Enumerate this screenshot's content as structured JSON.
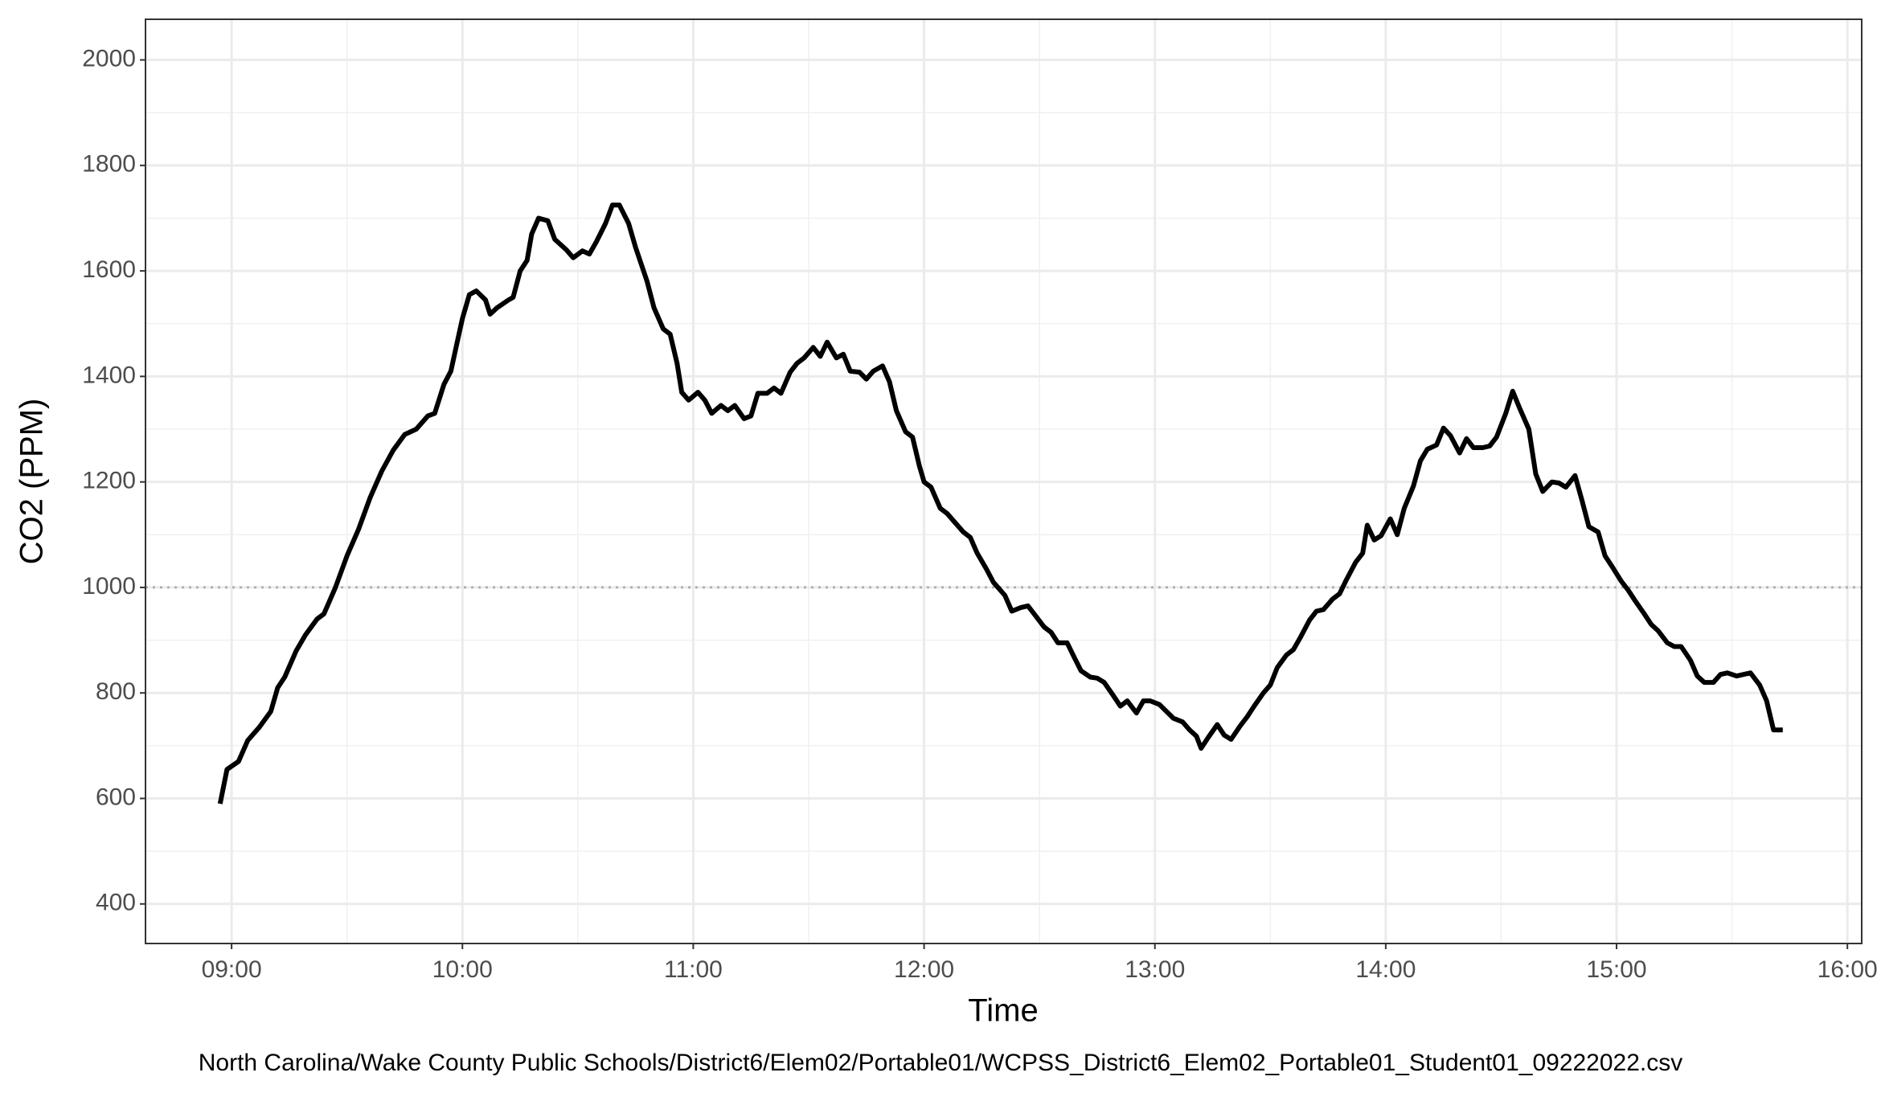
{
  "chart_data": {
    "type": "line",
    "x_label": "Time",
    "y_label": "CO2 (PPM)",
    "caption": "North Carolina/Wake County Public Schools/District6/Elem02/Portable01/WCPSS_District6_Elem02_Portable01_Student01_09222022.csv",
    "xlim": [
      8.627,
      16.062
    ],
    "ylim": [
      325,
      2077
    ],
    "xticks": [
      {
        "value": 9,
        "label": "09:00"
      },
      {
        "value": 10,
        "label": "10:00"
      },
      {
        "value": 11,
        "label": "11:00"
      },
      {
        "value": 12,
        "label": "12:00"
      },
      {
        "value": 13,
        "label": "13:00"
      },
      {
        "value": 14,
        "label": "14:00"
      },
      {
        "value": 15,
        "label": "15:00"
      },
      {
        "value": 16,
        "label": "16:00"
      }
    ],
    "yticks": [
      400,
      600,
      800,
      1000,
      1200,
      1400,
      1600,
      1800,
      2000
    ],
    "grid": true,
    "reference_line": {
      "value": 1000,
      "color": "#b0b0b0"
    },
    "x": [
      8.95,
      8.98,
      9.03,
      9.07,
      9.12,
      9.17,
      9.2,
      9.23,
      9.28,
      9.32,
      9.37,
      9.4,
      9.45,
      9.5,
      9.55,
      9.6,
      9.65,
      9.7,
      9.75,
      9.8,
      9.85,
      9.88,
      9.92,
      9.95,
      9.98,
      10.0,
      10.03,
      10.06,
      10.1,
      10.12,
      10.15,
      10.2,
      10.22,
      10.25,
      10.28,
      10.3,
      10.33,
      10.37,
      10.4,
      10.45,
      10.48,
      10.52,
      10.55,
      10.58,
      10.62,
      10.65,
      10.68,
      10.72,
      10.75,
      10.8,
      10.83,
      10.87,
      10.9,
      10.93,
      10.95,
      10.98,
      11.02,
      11.05,
      11.08,
      11.12,
      11.15,
      11.18,
      11.22,
      11.25,
      11.28,
      11.32,
      11.35,
      11.38,
      11.42,
      11.45,
      11.48,
      11.52,
      11.55,
      11.58,
      11.62,
      11.65,
      11.68,
      11.72,
      11.75,
      11.78,
      11.82,
      11.85,
      11.88,
      11.92,
      11.95,
      11.98,
      12.0,
      12.03,
      12.07,
      12.1,
      12.13,
      12.17,
      12.2,
      12.23,
      12.27,
      12.3,
      12.35,
      12.38,
      12.42,
      12.45,
      12.48,
      12.52,
      12.55,
      12.58,
      12.62,
      12.65,
      12.68,
      12.72,
      12.75,
      12.78,
      12.82,
      12.85,
      12.88,
      12.92,
      12.95,
      12.98,
      13.02,
      13.05,
      13.08,
      13.12,
      13.15,
      13.18,
      13.2,
      13.23,
      13.27,
      13.3,
      13.33,
      13.37,
      13.4,
      13.43,
      13.47,
      13.5,
      13.53,
      13.57,
      13.6,
      13.63,
      13.67,
      13.7,
      13.73,
      13.77,
      13.8,
      13.83,
      13.87,
      13.9,
      13.92,
      13.95,
      13.98,
      14.02,
      14.05,
      14.08,
      14.12,
      14.15,
      14.18,
      14.22,
      14.25,
      14.28,
      14.32,
      14.35,
      14.38,
      14.42,
      14.45,
      14.48,
      14.52,
      14.55,
      14.58,
      14.62,
      14.65,
      14.68,
      14.72,
      14.75,
      14.78,
      14.82,
      14.85,
      14.88,
      14.92,
      14.95,
      14.98,
      15.02,
      15.05,
      15.08,
      15.12,
      15.15,
      15.18,
      15.22,
      15.25,
      15.28,
      15.32,
      15.35,
      15.38,
      15.42,
      15.45,
      15.48,
      15.52,
      15.55,
      15.58,
      15.62,
      15.65,
      15.68,
      15.72
    ],
    "series": [
      {
        "color": "#000000",
        "values": [
          590,
          655,
          670,
          710,
          735,
          765,
          810,
          830,
          880,
          910,
          940,
          950,
          1000,
          1060,
          1110,
          1170,
          1220,
          1260,
          1290,
          1300,
          1325,
          1330,
          1385,
          1410,
          1470,
          1510,
          1555,
          1562,
          1545,
          1518,
          1530,
          1545,
          1550,
          1600,
          1620,
          1670,
          1700,
          1695,
          1660,
          1640,
          1625,
          1638,
          1632,
          1655,
          1690,
          1725,
          1725,
          1690,
          1645,
          1580,
          1530,
          1490,
          1480,
          1425,
          1370,
          1355,
          1370,
          1355,
          1330,
          1345,
          1335,
          1345,
          1320,
          1325,
          1368,
          1368,
          1378,
          1368,
          1408,
          1425,
          1435,
          1455,
          1438,
          1465,
          1435,
          1442,
          1410,
          1408,
          1395,
          1410,
          1420,
          1390,
          1335,
          1295,
          1285,
          1230,
          1200,
          1190,
          1150,
          1140,
          1125,
          1105,
          1095,
          1065,
          1035,
          1010,
          985,
          955,
          962,
          965,
          948,
          925,
          915,
          895,
          895,
          868,
          842,
          830,
          828,
          820,
          795,
          775,
          785,
          762,
          785,
          785,
          778,
          765,
          752,
          745,
          730,
          718,
          695,
          715,
          740,
          720,
          712,
          738,
          755,
          775,
          800,
          815,
          848,
          872,
          882,
          905,
          938,
          955,
          958,
          978,
          988,
          1015,
          1048,
          1065,
          1118,
          1090,
          1098,
          1130,
          1100,
          1150,
          1192,
          1240,
          1262,
          1270,
          1302,
          1288,
          1255,
          1282,
          1265,
          1265,
          1268,
          1285,
          1330,
          1372,
          1340,
          1300,
          1215,
          1182,
          1200,
          1198,
          1190,
          1212,
          1165,
          1115,
          1105,
          1060,
          1040,
          1012,
          995,
          975,
          950,
          930,
          918,
          895,
          888,
          888,
          862,
          832,
          820,
          820,
          835,
          838,
          832,
          835,
          838,
          815,
          785,
          730,
          730
        ]
      }
    ]
  }
}
